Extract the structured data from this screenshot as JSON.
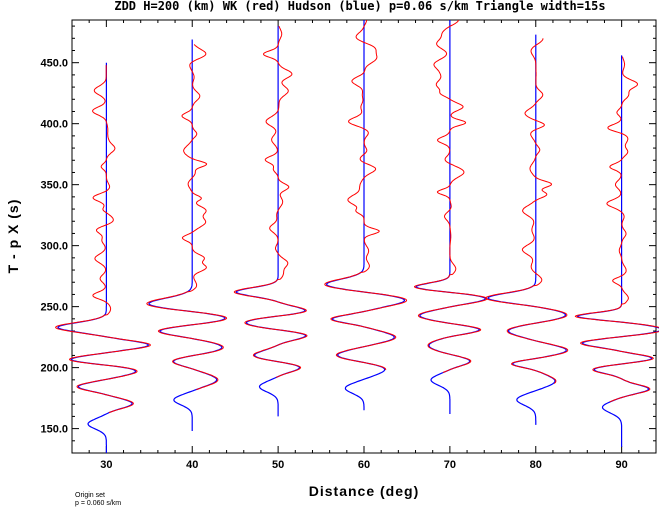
{
  "chart_data": {
    "type": "line",
    "title": "ZDD H=200 (km) WK (red) Hudson (blue) p=0.06 s/km Triangle width=15s",
    "xlabel": "Distance (deg)",
    "ylabel": "T - p X (s)",
    "xlim": [
      26,
      94
    ],
    "ylim": [
      130,
      485
    ],
    "x_ticks": [
      "30",
      "40",
      "50",
      "60",
      "70",
      "80",
      "90"
    ],
    "y_ticks": [
      "150.0",
      "200.0",
      "250.0",
      "300.0",
      "350.0",
      "400.0",
      "450.0"
    ],
    "x_tick_values": [
      30,
      40,
      50,
      60,
      70,
      80,
      90
    ],
    "y_tick_values": [
      150,
      200,
      250,
      300,
      350,
      400,
      450
    ],
    "grid": false,
    "series": [
      {
        "color": "#ff0000"
      },
      {
        "color": "#0000ff"
      }
    ],
    "traces": [
      {
        "distance": 30,
        "t_start": 130,
        "t_end": 450,
        "first_arrival": 233,
        "red_end": 448
      },
      {
        "distance": 40,
        "t_start": 148,
        "t_end": 469,
        "first_arrival": 252,
        "red_end": 465
      },
      {
        "distance": 50,
        "t_start": 160,
        "t_end": 480,
        "first_arrival": 262,
        "red_end": 480
      },
      {
        "distance": 60,
        "t_start": 165,
        "t_end": 485,
        "first_arrival": 268,
        "red_end": 485
      },
      {
        "distance": 70,
        "t_start": 162,
        "t_end": 485,
        "first_arrival": 266,
        "red_end": 485
      },
      {
        "distance": 80,
        "t_start": 153,
        "t_end": 473,
        "first_arrival": 257,
        "red_end": 470
      },
      {
        "distance": 90,
        "t_start": 135,
        "t_end": 456,
        "first_arrival": 242,
        "red_end": 455
      }
    ]
  },
  "footer": {
    "line1": "Origin set",
    "line2": "p = 0.060 s/km"
  }
}
